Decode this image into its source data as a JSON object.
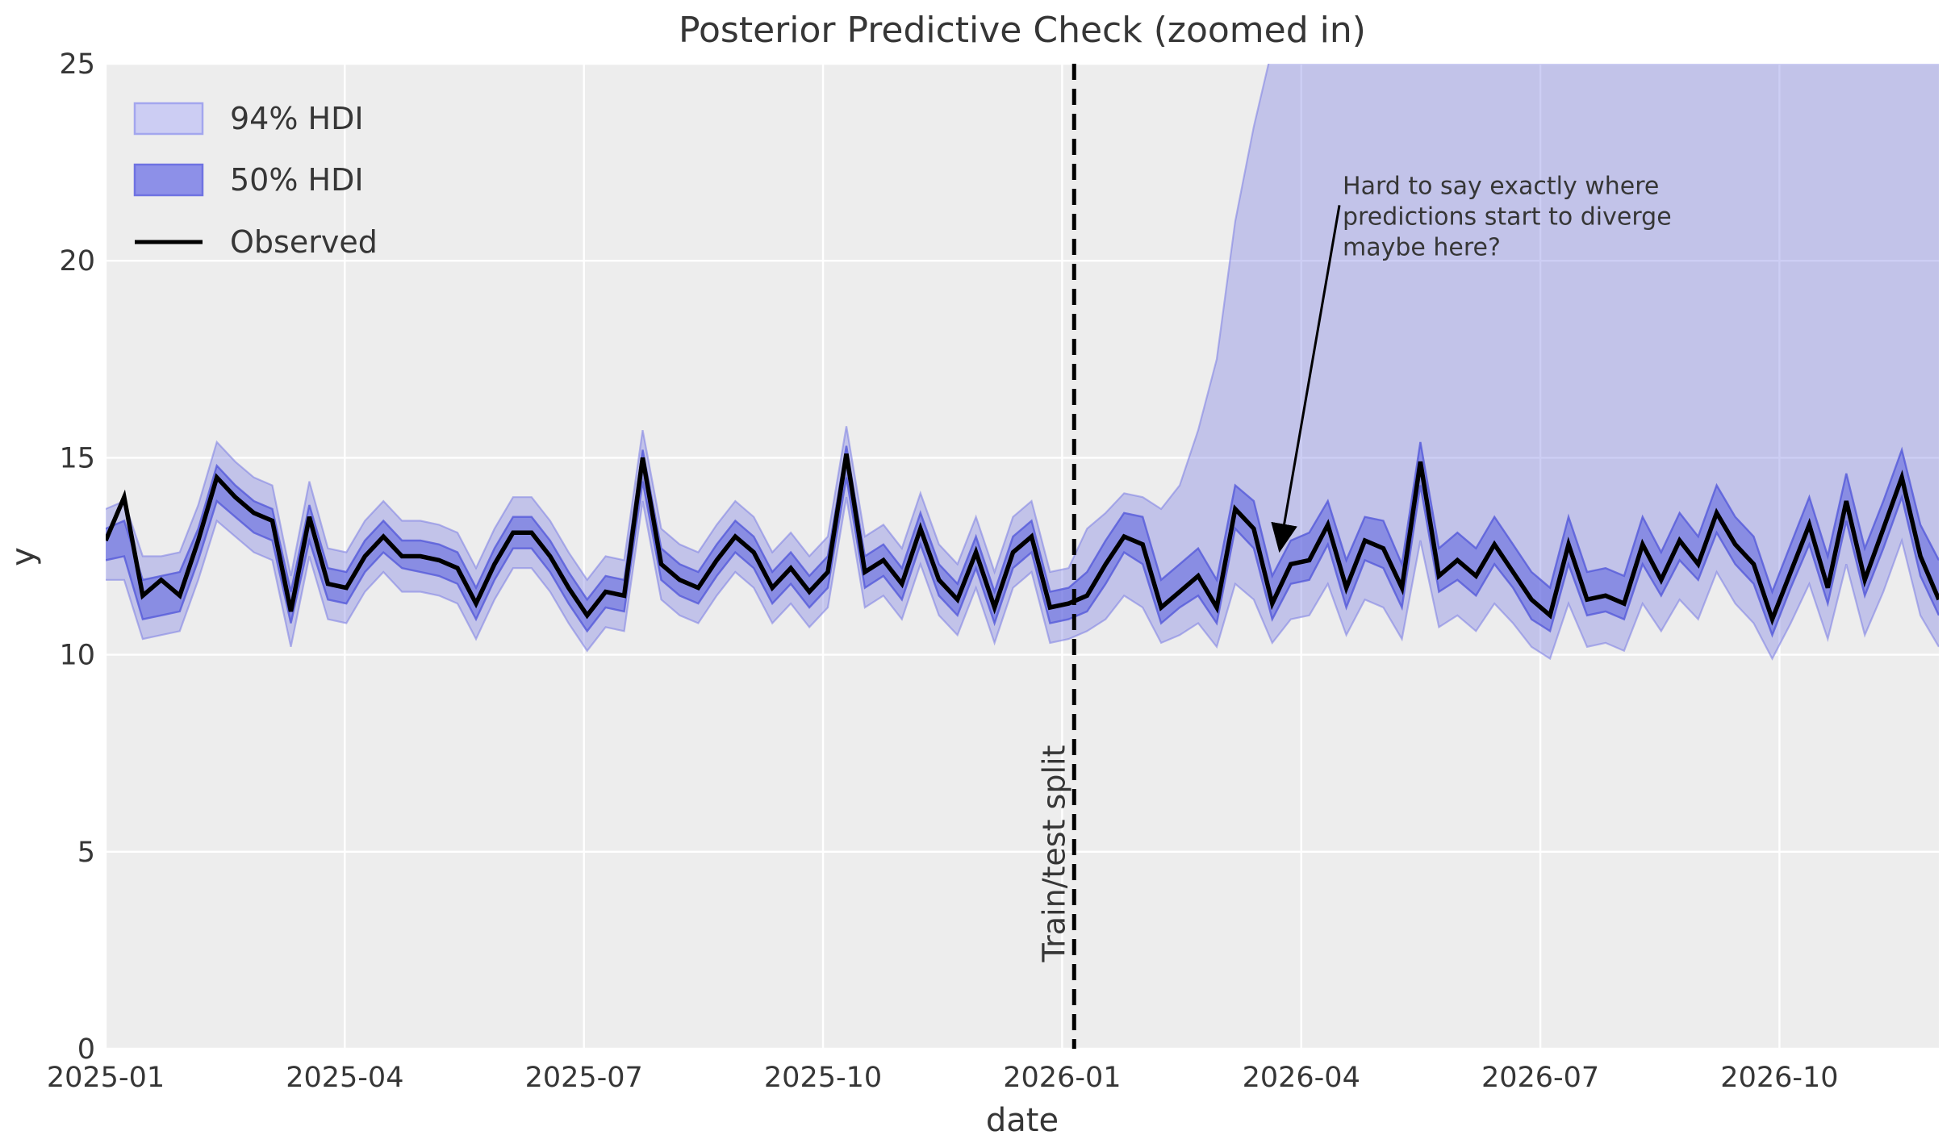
{
  "title": "Posterior Predictive Check (zoomed in)",
  "axes": {
    "xlabel": "date",
    "ylabel": "y",
    "ylim": [
      0,
      25
    ],
    "yticklabels": [
      "0",
      "5",
      "10",
      "15",
      "20",
      "25"
    ],
    "yticks": [
      0,
      5,
      10,
      15,
      20,
      25
    ],
    "xticklabels": [
      "2025-01",
      "2025-04",
      "2025-07",
      "2025-10",
      "2026-01",
      "2026-04",
      "2026-07",
      "2026-10"
    ],
    "xtick_month_index": [
      0,
      3,
      6,
      9,
      12,
      15,
      18,
      21
    ],
    "grid": true
  },
  "legend": {
    "position": "upper-left",
    "items": [
      {
        "label": "94% HDI",
        "type": "patch",
        "fill": "#cccdf3",
        "edge": "#a3a6ee"
      },
      {
        "label": "50% HDI",
        "type": "patch",
        "fill": "#8d90e8",
        "edge": "#6f73e2"
      },
      {
        "label": "Observed",
        "type": "line",
        "color": "#000000"
      }
    ]
  },
  "split": {
    "label": "Train/test split",
    "week_index": 52.3
  },
  "annotation": {
    "lines": [
      "Hard to say exactly where",
      "predictions start to diverge",
      "maybe here?"
    ],
    "text_xy_weeks_y": [
      66.8,
      21.9
    ],
    "arrow_tip_weeks_y": [
      63.4,
      12.65
    ]
  },
  "colors": {
    "axes_bg": "#ededed",
    "grid": "#ffffff",
    "hdi94_fill": "rgba(123,126,227,0.38)",
    "hdi94_edge": "rgba(123,126,227,0.55)",
    "hdi50_fill": "rgba(91,96,222,0.55)",
    "hdi50_edge": "rgba(85,90,218,0.80)",
    "observed": "#000000",
    "split_line": "#000000",
    "text": "#363636"
  },
  "chart_data": {
    "type": "line",
    "title": "Posterior Predictive Check (zoomed in)",
    "xlabel": "date",
    "ylabel": "y",
    "ylim": [
      0,
      25
    ],
    "x_start": "2025-01-01",
    "x_step_days": 7,
    "n_points": 100,
    "legend_entries": [
      "94% HDI",
      "50% HDI",
      "Observed"
    ],
    "observed": [
      12.9,
      14.0,
      11.5,
      11.9,
      11.5,
      12.9,
      14.5,
      14.0,
      13.6,
      13.4,
      11.1,
      13.5,
      11.8,
      11.7,
      12.5,
      13.0,
      12.5,
      12.5,
      12.4,
      12.2,
      11.3,
      12.3,
      13.1,
      13.1,
      12.5,
      11.7,
      11.0,
      11.6,
      11.5,
      15.0,
      12.3,
      11.9,
      11.7,
      12.4,
      13.0,
      12.6,
      11.7,
      12.2,
      11.6,
      12.1,
      15.1,
      12.1,
      12.4,
      11.8,
      13.2,
      11.9,
      11.4,
      12.6,
      11.2,
      12.6,
      13.0,
      11.2,
      11.3,
      11.5,
      12.3,
      13.0,
      12.8,
      11.2,
      11.6,
      12.0,
      11.2,
      13.7,
      13.2,
      11.3,
      12.3,
      12.4,
      13.3,
      11.7,
      12.9,
      12.7,
      11.7,
      14.9,
      12.0,
      12.4,
      12.0,
      12.8,
      12.1,
      11.4,
      11.0,
      12.8,
      11.4,
      11.5,
      11.3,
      12.8,
      11.9,
      12.9,
      12.3,
      13.6,
      12.8,
      12.3,
      10.9,
      12.1,
      13.3,
      11.7,
      13.9,
      11.9,
      13.2,
      14.5,
      12.5,
      11.4
    ],
    "hdi50_lower": [
      12.4,
      12.5,
      10.9,
      11.0,
      11.1,
      12.4,
      13.9,
      13.5,
      13.1,
      12.9,
      10.8,
      12.9,
      11.4,
      11.3,
      12.1,
      12.6,
      12.2,
      12.1,
      12.0,
      11.8,
      10.9,
      11.9,
      12.7,
      12.7,
      12.1,
      11.3,
      10.6,
      11.2,
      11.1,
      14.4,
      11.9,
      11.5,
      11.3,
      12.0,
      12.6,
      12.2,
      11.3,
      11.8,
      11.2,
      11.7,
      14.5,
      11.7,
      12.0,
      11.4,
      12.8,
      11.5,
      11.0,
      12.2,
      10.8,
      12.2,
      12.6,
      10.8,
      10.9,
      11.1,
      11.8,
      12.6,
      12.3,
      10.8,
      11.2,
      11.5,
      10.8,
      13.2,
      12.7,
      10.9,
      11.8,
      11.9,
      12.8,
      11.2,
      12.4,
      12.2,
      11.2,
      14.3,
      11.6,
      11.9,
      11.5,
      12.3,
      11.7,
      10.9,
      10.6,
      12.3,
      11.0,
      11.1,
      10.9,
      12.3,
      11.5,
      12.4,
      11.9,
      13.1,
      12.3,
      11.8,
      10.5,
      11.7,
      12.8,
      11.3,
      13.4,
      11.5,
      12.7,
      14.0,
      12.0,
      11.0
    ],
    "hdi50_upper": [
      13.2,
      13.4,
      11.9,
      12.0,
      12.1,
      13.2,
      14.8,
      14.3,
      13.9,
      13.7,
      11.6,
      13.8,
      12.2,
      12.1,
      12.9,
      13.4,
      12.9,
      12.9,
      12.8,
      12.6,
      11.7,
      12.7,
      13.5,
      13.5,
      12.9,
      12.1,
      11.4,
      12.0,
      11.9,
      15.2,
      12.7,
      12.3,
      12.1,
      12.8,
      13.4,
      13.0,
      12.1,
      12.6,
      12.0,
      12.5,
      15.3,
      12.5,
      12.8,
      12.2,
      13.6,
      12.3,
      11.8,
      13.0,
      11.6,
      13.0,
      13.4,
      11.6,
      11.7,
      12.1,
      12.9,
      13.6,
      13.5,
      11.9,
      12.3,
      12.7,
      11.9,
      14.3,
      13.9,
      12.0,
      12.9,
      13.1,
      13.9,
      12.4,
      13.5,
      13.4,
      12.3,
      15.4,
      12.7,
      13.1,
      12.7,
      13.5,
      12.8,
      12.1,
      11.7,
      13.5,
      12.1,
      12.2,
      12.0,
      13.5,
      12.6,
      13.6,
      13.0,
      14.3,
      13.5,
      13.0,
      11.6,
      12.8,
      14.0,
      12.5,
      14.6,
      12.7,
      13.9,
      15.2,
      13.3,
      12.4
    ],
    "hdi94_lower": [
      11.9,
      11.9,
      10.4,
      10.5,
      10.6,
      11.9,
      13.4,
      13.0,
      12.6,
      12.4,
      10.2,
      12.5,
      10.9,
      10.8,
      11.6,
      12.1,
      11.6,
      11.6,
      11.5,
      11.3,
      10.4,
      11.4,
      12.2,
      12.2,
      11.6,
      10.8,
      10.1,
      10.7,
      10.6,
      13.9,
      11.4,
      11.0,
      10.8,
      11.5,
      12.1,
      11.7,
      10.8,
      11.3,
      10.7,
      11.2,
      14.0,
      11.2,
      11.5,
      10.9,
      12.3,
      11.0,
      10.5,
      11.7,
      10.3,
      11.7,
      12.1,
      10.3,
      10.4,
      10.6,
      10.9,
      11.5,
      11.2,
      10.3,
      10.5,
      10.8,
      10.2,
      11.8,
      11.4,
      10.3,
      10.9,
      11.0,
      11.8,
      10.5,
      11.4,
      11.2,
      10.4,
      12.9,
      10.7,
      11.0,
      10.6,
      11.3,
      10.8,
      10.2,
      9.9,
      11.3,
      10.2,
      10.3,
      10.1,
      11.3,
      10.6,
      11.4,
      10.9,
      12.1,
      11.3,
      10.8,
      9.9,
      10.8,
      11.8,
      10.4,
      12.3,
      10.5,
      11.6,
      12.9,
      11.0,
      10.2
    ],
    "hdi94_upper": [
      13.7,
      13.9,
      12.5,
      12.5,
      12.6,
      13.8,
      15.4,
      14.9,
      14.5,
      14.3,
      12.0,
      14.4,
      12.7,
      12.6,
      13.4,
      13.9,
      13.4,
      13.4,
      13.3,
      13.1,
      12.2,
      13.2,
      14.0,
      14.0,
      13.4,
      12.6,
      11.9,
      12.5,
      12.4,
      15.7,
      13.2,
      12.8,
      12.6,
      13.3,
      13.9,
      13.5,
      12.6,
      13.1,
      12.5,
      13.0,
      15.8,
      13.0,
      13.3,
      12.7,
      14.1,
      12.8,
      12.3,
      13.5,
      12.1,
      13.5,
      13.9,
      12.1,
      12.2,
      13.2,
      13.6,
      14.1,
      14.0,
      13.7,
      14.3,
      15.7,
      17.5,
      21.0,
      23.4,
      25.4,
      26.5,
      26.5,
      26.5,
      26.5,
      26.5,
      26.5,
      26.5,
      26.5,
      26.5,
      26.5,
      26.5,
      26.5,
      26.5,
      26.5,
      26.5,
      26.5,
      26.5,
      26.5,
      26.5,
      26.5,
      26.5,
      26.5,
      26.5,
      26.5,
      26.5,
      26.5,
      26.5,
      26.5,
      26.5,
      26.5,
      26.5,
      26.5,
      26.5,
      26.5,
      26.5,
      26.5
    ]
  }
}
